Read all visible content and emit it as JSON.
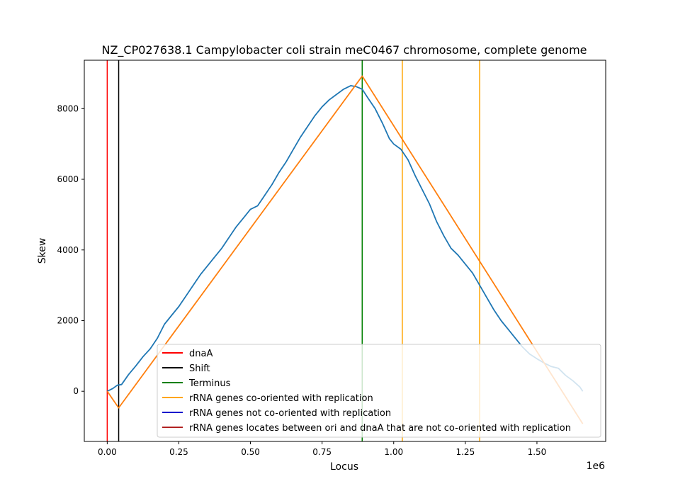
{
  "chart_data": {
    "type": "line",
    "title": "NZ_CP027638.1 Campylobacter coli strain meC0467 chromosome, complete genome",
    "xlabel": "Locus",
    "ylabel": "Skew",
    "x_offset_label": "1e6",
    "xlim": [
      -0.08,
      1.74
    ],
    "ylim": [
      -1420,
      9370
    ],
    "x_ticks": [
      {
        "value": 0.0,
        "label": "0.00"
      },
      {
        "value": 0.25,
        "label": "0.25"
      },
      {
        "value": 0.5,
        "label": "0.50"
      },
      {
        "value": 0.75,
        "label": "0.75"
      },
      {
        "value": 1.0,
        "label": "1.00"
      },
      {
        "value": 1.25,
        "label": "1.25"
      },
      {
        "value": 1.5,
        "label": "1.50"
      }
    ],
    "y_ticks": [
      {
        "value": 0,
        "label": "0"
      },
      {
        "value": 2000,
        "label": "2000"
      },
      {
        "value": 4000,
        "label": "4000"
      },
      {
        "value": 6000,
        "label": "6000"
      },
      {
        "value": 8000,
        "label": "8000"
      }
    ],
    "grid": false,
    "legend_position": "lower right",
    "series": [
      {
        "name": "",
        "color": "#1f77b4",
        "kind": "cumulative skew",
        "x": [
          0.0,
          0.02,
          0.035,
          0.05,
          0.075,
          0.1,
          0.125,
          0.15,
          0.175,
          0.2,
          0.225,
          0.25,
          0.275,
          0.3,
          0.325,
          0.35,
          0.375,
          0.4,
          0.425,
          0.45,
          0.475,
          0.5,
          0.525,
          0.55,
          0.575,
          0.6,
          0.625,
          0.65,
          0.675,
          0.7,
          0.725,
          0.75,
          0.775,
          0.8,
          0.825,
          0.85,
          0.87,
          0.89,
          0.91,
          0.935,
          0.96,
          0.985,
          1.0,
          1.025,
          1.05,
          1.075,
          1.1,
          1.125,
          1.15,
          1.175,
          1.2,
          1.225,
          1.25,
          1.275,
          1.3,
          1.325,
          1.35,
          1.375,
          1.4,
          1.425,
          1.45,
          1.475,
          1.5,
          1.525,
          1.55,
          1.575,
          1.6,
          1.625,
          1.65,
          1.66
        ],
        "y": [
          0,
          80,
          170,
          190,
          480,
          720,
          980,
          1200,
          1500,
          1900,
          2150,
          2400,
          2700,
          3000,
          3300,
          3550,
          3800,
          4050,
          4350,
          4650,
          4900,
          5150,
          5250,
          5550,
          5850,
          6200,
          6500,
          6850,
          7200,
          7500,
          7800,
          8050,
          8250,
          8400,
          8550,
          8650,
          8620,
          8550,
          8300,
          8000,
          7600,
          7150,
          7000,
          6850,
          6550,
          6100,
          5700,
          5300,
          4800,
          4400,
          4050,
          3850,
          3600,
          3350,
          3000,
          2650,
          2300,
          2000,
          1750,
          1500,
          1250,
          1050,
          920,
          800,
          700,
          650,
          450,
          300,
          120,
          0
        ]
      },
      {
        "name": "",
        "color": "#ff7f0e",
        "kind": "predicted skew",
        "x": [
          0.0,
          0.04,
          0.89,
          1.66
        ],
        "y": [
          0,
          -470,
          8920,
          -920
        ]
      }
    ],
    "vlines": [
      {
        "x": 0.0,
        "color": "#ff0000",
        "series": "dnaA"
      },
      {
        "x": 0.04,
        "color": "#000000",
        "series": "Shift"
      },
      {
        "x": 0.89,
        "color": "#008000",
        "series": "Terminus"
      },
      {
        "x": 1.03,
        "color": "#ffa500",
        "series": "rRNA genes co-oriented with replication"
      },
      {
        "x": 1.3,
        "color": "#ffa500",
        "series": "rRNA genes co-oriented with replication"
      }
    ],
    "legend": [
      {
        "label": "dnaA",
        "color": "#ff0000"
      },
      {
        "label": "Shift",
        "color": "#000000"
      },
      {
        "label": "Terminus",
        "color": "#008000"
      },
      {
        "label": "rRNA genes co-oriented with replication",
        "color": "#ffa500"
      },
      {
        "label": "rRNA genes not co-oriented with replication",
        "color": "#0000cd"
      },
      {
        "label": "rRNA genes locates between ori and dnaA that are not co-oriented with replication",
        "color": "#b22222"
      }
    ]
  }
}
